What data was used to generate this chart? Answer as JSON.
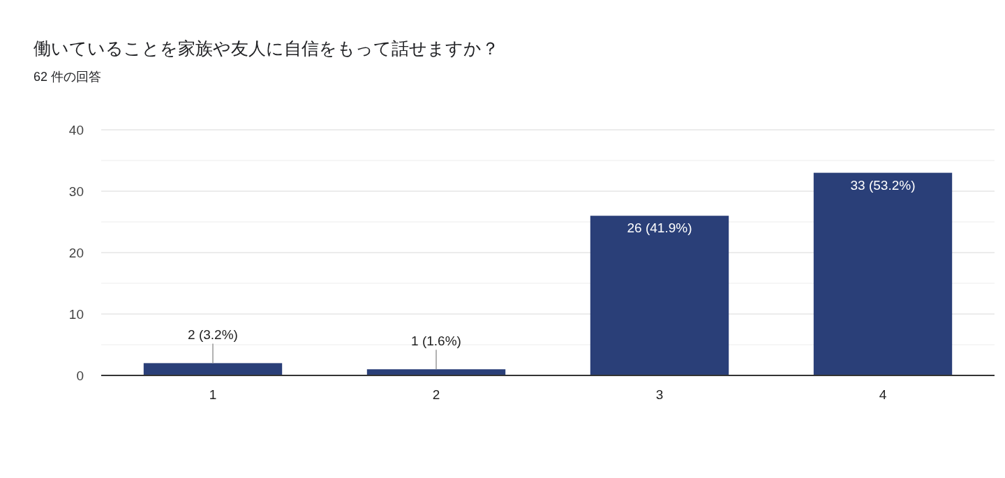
{
  "chart_data": {
    "type": "bar",
    "title": "働いていることを家族や友人に自信をもって話せますか？",
    "subtitle": "62 件の回答",
    "categories": [
      "1",
      "2",
      "3",
      "4"
    ],
    "values": [
      2,
      1,
      26,
      33
    ],
    "value_labels": [
      "2 (3.2%)",
      "1 (1.6%)",
      "26 (41.9%)",
      "33 (53.2%)"
    ],
    "color": "#2a3f78",
    "ylim": [
      0,
      40
    ],
    "yticks": [
      0,
      {
        "value": 5,
        "label": null
      },
      10,
      {
        "value": 15,
        "label": null
      },
      20,
      {
        "value": 25,
        "label": null
      },
      30,
      {
        "value": 35,
        "label": null
      },
      40
    ],
    "grid": "y"
  }
}
